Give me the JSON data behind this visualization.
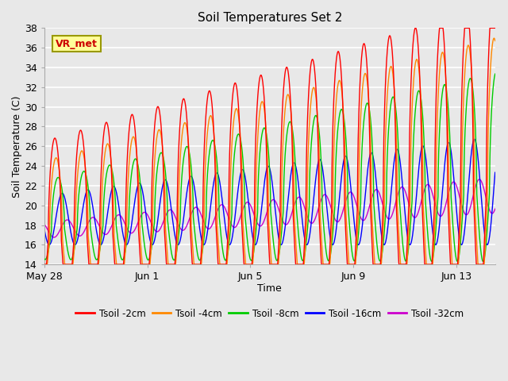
{
  "title": "Soil Temperatures Set 2",
  "xlabel": "Time",
  "ylabel": "Soil Temperature (C)",
  "ylim": [
    14,
    38
  ],
  "yticks": [
    14,
    16,
    18,
    20,
    22,
    24,
    26,
    28,
    30,
    32,
    34,
    36,
    38
  ],
  "x_tick_labels": [
    "May 28",
    "Jun 1",
    "Jun 5",
    "Jun 9",
    "Jun 13"
  ],
  "x_tick_positions": [
    0,
    4,
    8,
    12,
    16
  ],
  "total_days": 17.5,
  "annotation_label": "VR_met",
  "annotation_text_color": "#cc0000",
  "annotation_bg": "#ffff99",
  "annotation_border": "#999900",
  "series_labels": [
    "Tsoil -2cm",
    "Tsoil -4cm",
    "Tsoil -8cm",
    "Tsoil -16cm",
    "Tsoil -32cm"
  ],
  "series_colors": [
    "#ff0000",
    "#ff8800",
    "#00cc00",
    "#0000ff",
    "#cc00cc"
  ],
  "plot_bg_color": "#e8e8e8",
  "fig_bg_color": "#e8e8e8",
  "grid_color": "#ffffff"
}
